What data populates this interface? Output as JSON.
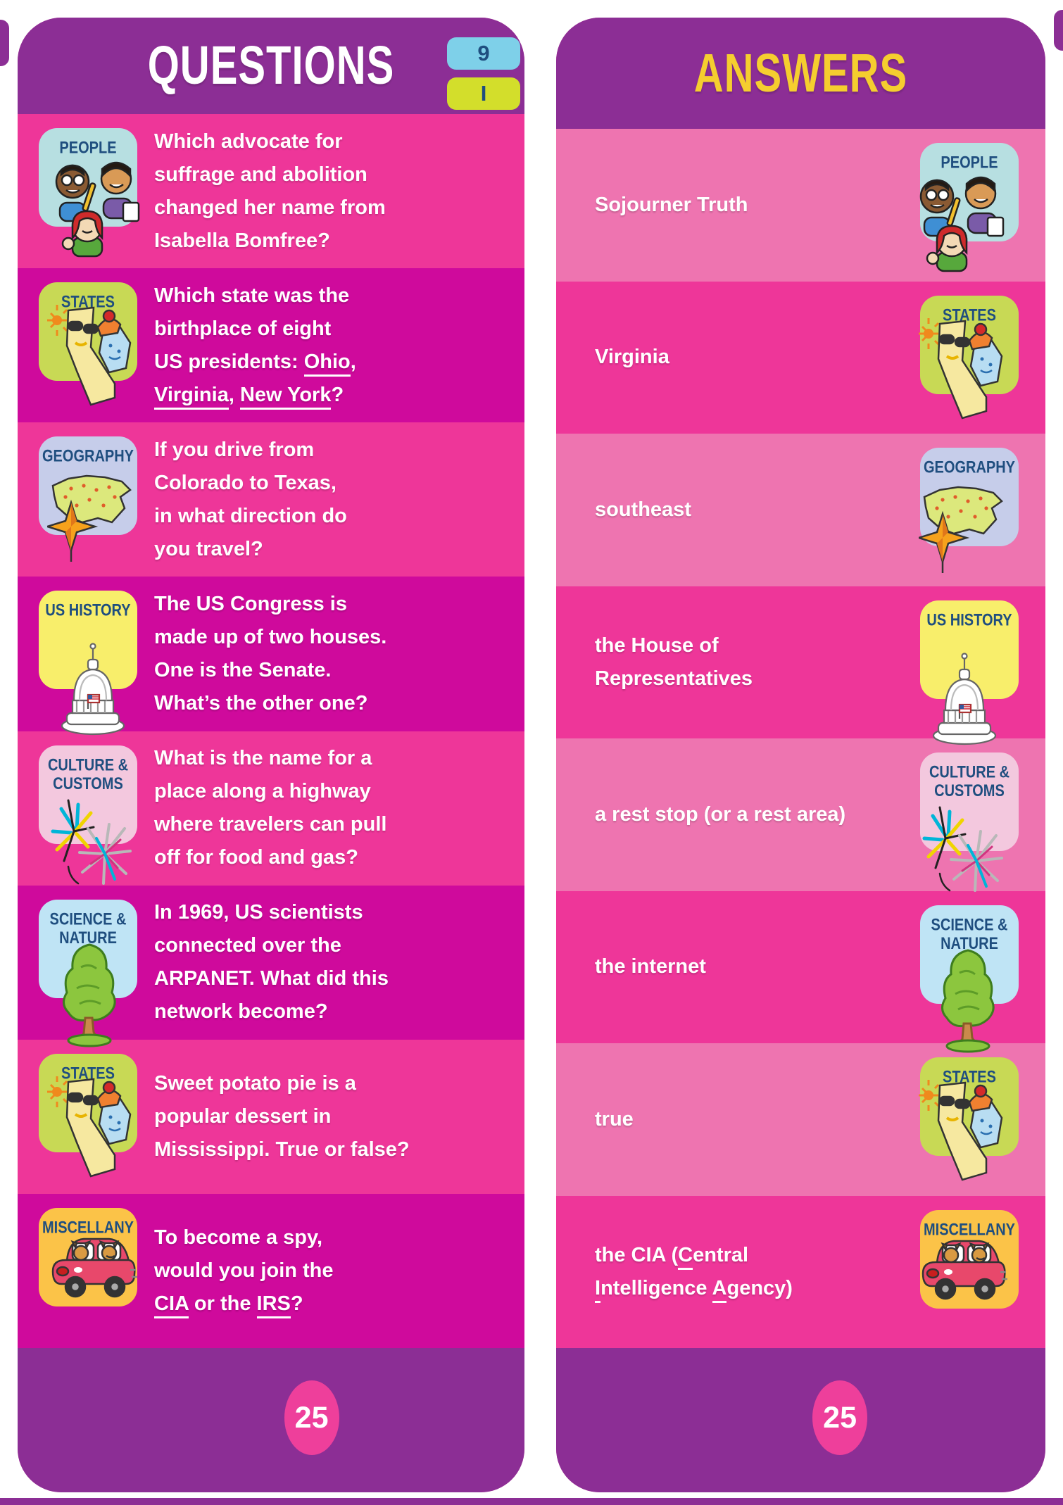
{
  "colors": {
    "purple": "#8C2E95",
    "pink_bright": "#EE3699",
    "pink_deep": "#CF0A9C",
    "pink_light": "#EE74B0",
    "title_yellow": "#F5CE2F",
    "navy": "#1F4E7F",
    "circle_pink": "#EE3F9B",
    "tab_blue": "#7ED0E9",
    "tab_green": "#D3DE2B"
  },
  "questions_card": {
    "title": "QUESTIONS",
    "tabs": [
      {
        "label": "9",
        "color": "#7ED0E9"
      },
      {
        "label": "I",
        "color": "#D3DE2B"
      }
    ],
    "page_number": "25",
    "rows": [
      {
        "category": "PEOPLE",
        "icon": "people-icon",
        "badge_color": "#B7DFE1",
        "shade": "bright",
        "question": [
          {
            "t": "Which advocate for"
          },
          {
            "br": true
          },
          {
            "t": "suffrage and abolition"
          },
          {
            "br": true
          },
          {
            "t": "changed her name from"
          },
          {
            "br": true
          },
          {
            "t": "Isabella Bomfree?"
          }
        ]
      },
      {
        "category": "STATES",
        "icon": "states-icon",
        "badge_color": "#C8D955",
        "shade": "deep",
        "question": [
          {
            "t": "Which state was the"
          },
          {
            "br": true
          },
          {
            "t": "birthplace of eight"
          },
          {
            "br": true
          },
          {
            "t": "US presidents: "
          },
          {
            "t": "Ohio",
            "u": true
          },
          {
            "t": ","
          },
          {
            "br": true
          },
          {
            "t": "Virginia",
            "u": true
          },
          {
            "t": ", "
          },
          {
            "t": "New York",
            "u": true
          },
          {
            "t": "?"
          }
        ]
      },
      {
        "category": "GEOGRAPHY",
        "icon": "geography-icon",
        "badge_color": "#C6CDEA",
        "shade": "bright",
        "question": [
          {
            "t": "If you drive from"
          },
          {
            "br": true
          },
          {
            "t": "Colorado to Texas,"
          },
          {
            "br": true
          },
          {
            "t": "in what direction do"
          },
          {
            "br": true
          },
          {
            "t": "you travel?"
          }
        ]
      },
      {
        "category": "US HISTORY",
        "icon": "us-history-icon",
        "badge_color": "#F8EE6B",
        "shade": "deep",
        "question": [
          {
            "t": "The US Congress is"
          },
          {
            "br": true
          },
          {
            "t": "made up of two houses."
          },
          {
            "br": true
          },
          {
            "t": "One is the Senate."
          },
          {
            "br": true
          },
          {
            "t": "What’s the other one?"
          }
        ]
      },
      {
        "category": "CULTURE & CUSTOMS",
        "icon": "culture-icon",
        "badge_color": "#F3C8DE",
        "shade": "bright",
        "question": [
          {
            "t": "What is the name for a"
          },
          {
            "br": true
          },
          {
            "t": "place along a highway"
          },
          {
            "br": true
          },
          {
            "t": "where travelers can pull"
          },
          {
            "br": true
          },
          {
            "t": "off for food and gas?"
          }
        ]
      },
      {
        "category": "SCIENCE & NATURE",
        "icon": "science-icon",
        "badge_color": "#BFE4F5",
        "shade": "deep",
        "question": [
          {
            "t": "In 1969, US scientists"
          },
          {
            "br": true
          },
          {
            "t": "connected over the"
          },
          {
            "br": true
          },
          {
            "t": "ARPANET. What did this"
          },
          {
            "br": true
          },
          {
            "t": "network become?"
          }
        ]
      },
      {
        "category": "STATES",
        "icon": "states-icon",
        "badge_color": "#C8D955",
        "shade": "bright",
        "question": [
          {
            "t": "Sweet potato pie is a"
          },
          {
            "br": true
          },
          {
            "t": "popular dessert in"
          },
          {
            "br": true
          },
          {
            "t": "Mississippi. True or false?"
          }
        ]
      },
      {
        "category": "MISCELLANY",
        "icon": "miscellany-icon",
        "badge_color": "#FBC348",
        "shade": "deep",
        "question": [
          {
            "t": "To become a spy,"
          },
          {
            "br": true
          },
          {
            "t": "would you join the"
          },
          {
            "br": true
          },
          {
            "t": "CIA",
            "u": true
          },
          {
            "t": " or the "
          },
          {
            "t": "IRS",
            "u": true
          },
          {
            "t": "?"
          }
        ]
      }
    ]
  },
  "answers_card": {
    "title": "ANSWERS",
    "page_number": "25",
    "rows": [
      {
        "category": "PEOPLE",
        "icon": "people-icon",
        "badge_color": "#B7DFE1",
        "shade": "light",
        "answer": [
          {
            "t": "Sojourner Truth"
          }
        ]
      },
      {
        "category": "STATES",
        "icon": "states-icon",
        "badge_color": "#C8D955",
        "shade": "bright",
        "answer": [
          {
            "t": "Virginia"
          }
        ]
      },
      {
        "category": "GEOGRAPHY",
        "icon": "geography-icon",
        "badge_color": "#C6CDEA",
        "shade": "light",
        "answer": [
          {
            "t": "southeast"
          }
        ]
      },
      {
        "category": "US HISTORY",
        "icon": "us-history-icon",
        "badge_color": "#F8EE6B",
        "shade": "bright",
        "answer": [
          {
            "t": "the House of"
          },
          {
            "br": true
          },
          {
            "t": "Representatives"
          }
        ]
      },
      {
        "category": "CULTURE & CUSTOMS",
        "icon": "culture-icon",
        "badge_color": "#F3C8DE",
        "shade": "light",
        "answer": [
          {
            "t": "a rest stop (or a rest area)"
          }
        ]
      },
      {
        "category": "SCIENCE & NATURE",
        "icon": "science-icon",
        "badge_color": "#BFE4F5",
        "shade": "bright",
        "answer": [
          {
            "t": "the internet"
          }
        ]
      },
      {
        "category": "STATES",
        "icon": "states-icon",
        "badge_color": "#C8D955",
        "shade": "light",
        "answer": [
          {
            "t": "true"
          }
        ]
      },
      {
        "category": "MISCELLANY",
        "icon": "miscellany-icon",
        "badge_color": "#FBC348",
        "shade": "bright",
        "answer": [
          {
            "t": "the CIA ("
          },
          {
            "t": "C",
            "u": true
          },
          {
            "t": "entral"
          },
          {
            "br": true
          },
          {
            "t": "I",
            "u": true
          },
          {
            "t": "ntelligence "
          },
          {
            "t": "A",
            "u": true
          },
          {
            "t": "gency)"
          }
        ]
      }
    ]
  }
}
